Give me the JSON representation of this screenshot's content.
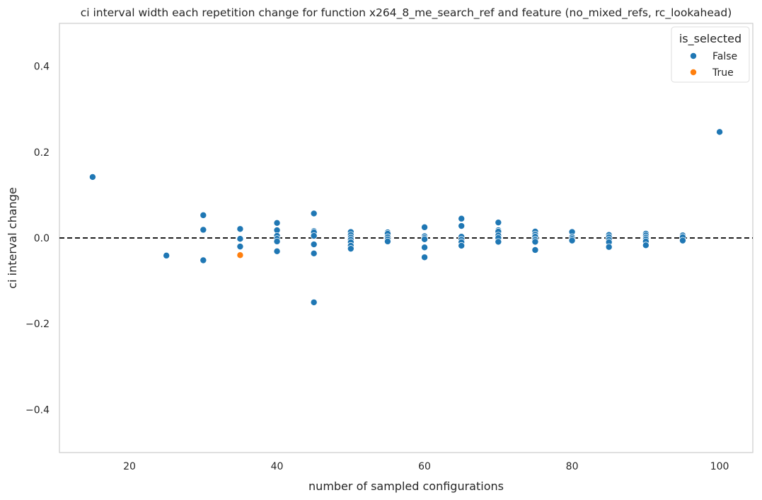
{
  "chart_data": {
    "type": "scatter",
    "title": "ci interval width each repetition change for function x264_8_me_search_ref and feature (no_mixed_refs, rc_lookahead)",
    "xlabel": "number of sampled configurations",
    "ylabel": "ci interval change",
    "xlim": [
      10.5,
      104.5
    ],
    "ylim": [
      -0.5,
      0.5
    ],
    "xticks": [
      20,
      40,
      60,
      80,
      100
    ],
    "xtick_labels": [
      "20",
      "40",
      "60",
      "80",
      "100"
    ],
    "yticks": [
      0.4,
      0.2,
      0.0,
      -0.2,
      -0.4
    ],
    "ytick_labels": [
      "0.4",
      "0.2",
      "0.0",
      "−0.2",
      "−0.4"
    ],
    "grid": false,
    "reference_line": {
      "y": 0.0,
      "style": "dashed",
      "color": "#000000"
    },
    "legend": {
      "title": "is_selected",
      "placement": "top-right",
      "entries": [
        {
          "label": "False",
          "color": "#1f77b4"
        },
        {
          "label": "True",
          "color": "#ff7f0e"
        }
      ]
    },
    "series": [
      {
        "name": "False",
        "color": "#1f77b4",
        "points": [
          [
            15,
            0.142
          ],
          [
            25,
            -0.041
          ],
          [
            30,
            0.053
          ],
          [
            30,
            0.019
          ],
          [
            30,
            -0.052
          ],
          [
            35,
            0.021
          ],
          [
            35,
            -0.002
          ],
          [
            35,
            -0.02
          ],
          [
            40,
            0.035
          ],
          [
            40,
            0.018
          ],
          [
            40,
            0.005
          ],
          [
            40,
            -0.002
          ],
          [
            40,
            -0.008
          ],
          [
            40,
            -0.031
          ],
          [
            45,
            0.057
          ],
          [
            45,
            0.016
          ],
          [
            45,
            0.013
          ],
          [
            45,
            0.005
          ],
          [
            45,
            -0.015
          ],
          [
            45,
            -0.036
          ],
          [
            45,
            -0.15
          ],
          [
            50,
            0.014
          ],
          [
            50,
            0.007
          ],
          [
            50,
            0.001
          ],
          [
            50,
            -0.004
          ],
          [
            50,
            -0.01
          ],
          [
            50,
            -0.018
          ],
          [
            50,
            -0.025
          ],
          [
            55,
            0.013
          ],
          [
            55,
            0.01
          ],
          [
            55,
            0.002
          ],
          [
            55,
            -0.003
          ],
          [
            55,
            -0.008
          ],
          [
            60,
            0.025
          ],
          [
            60,
            0.004
          ],
          [
            60,
            0.0
          ],
          [
            60,
            -0.003
          ],
          [
            60,
            -0.022
          ],
          [
            60,
            -0.045
          ],
          [
            65,
            0.045
          ],
          [
            65,
            0.028
          ],
          [
            65,
            0.003
          ],
          [
            65,
            -0.004
          ],
          [
            65,
            -0.01
          ],
          [
            65,
            -0.018
          ],
          [
            70,
            0.036
          ],
          [
            70,
            0.018
          ],
          [
            70,
            0.015
          ],
          [
            70,
            0.006
          ],
          [
            70,
            0.0
          ],
          [
            70,
            -0.009
          ],
          [
            75,
            0.015
          ],
          [
            75,
            0.008
          ],
          [
            75,
            0.003
          ],
          [
            75,
            -0.004
          ],
          [
            75,
            -0.009
          ],
          [
            75,
            -0.028
          ],
          [
            80,
            0.014
          ],
          [
            80,
            0.002
          ],
          [
            80,
            -0.002
          ],
          [
            80,
            -0.006
          ],
          [
            85,
            0.007
          ],
          [
            85,
            0.002
          ],
          [
            85,
            -0.004
          ],
          [
            85,
            -0.01
          ],
          [
            85,
            -0.021
          ],
          [
            90,
            0.01
          ],
          [
            90,
            0.006
          ],
          [
            90,
            0.001
          ],
          [
            90,
            -0.003
          ],
          [
            90,
            -0.008
          ],
          [
            90,
            -0.017
          ],
          [
            95,
            0.006
          ],
          [
            95,
            0.002
          ],
          [
            95,
            -0.006
          ],
          [
            100,
            0.247
          ]
        ]
      },
      {
        "name": "True",
        "color": "#ff7f0e",
        "points": [
          [
            35,
            -0.04
          ]
        ]
      }
    ]
  }
}
